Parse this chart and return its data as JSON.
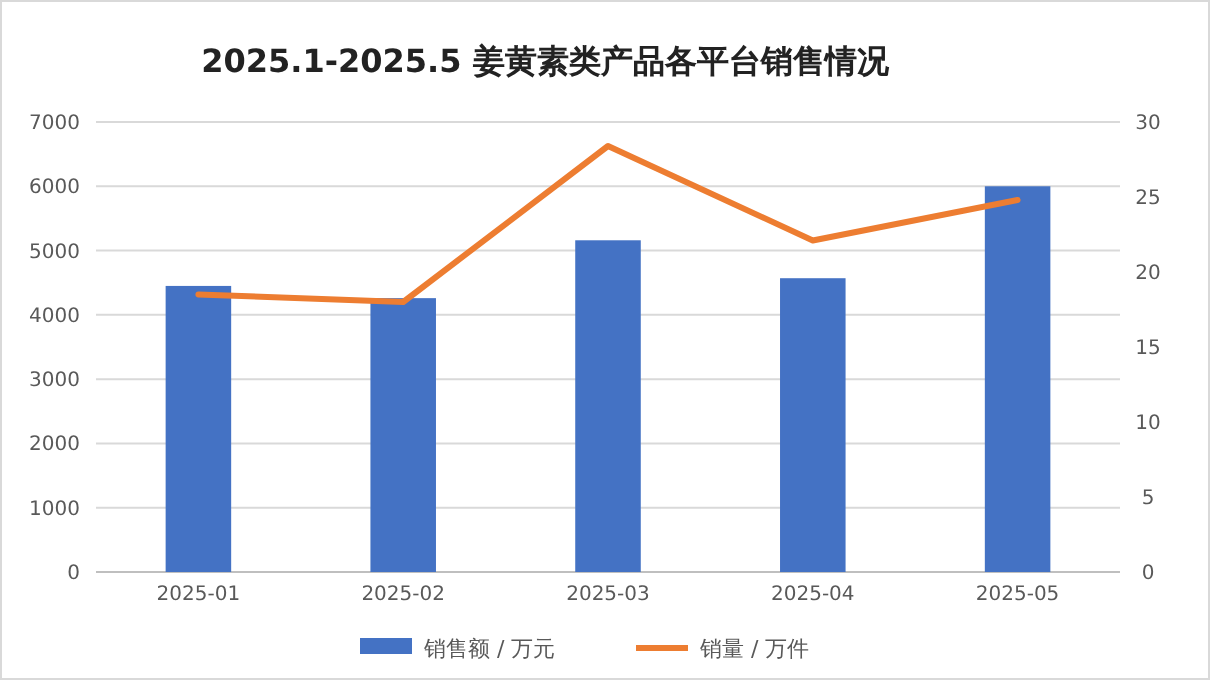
{
  "chart_data": {
    "type": "bar",
    "title": "2025.1-2025.5 姜黄素类产品各平台销售情况",
    "categories": [
      "2025-01",
      "2025-02",
      "2025-03",
      "2025-04",
      "2025-05"
    ],
    "series": [
      {
        "name": "销售额 / 万元",
        "color": "#4472c4",
        "values": [
          4450,
          4260,
          5160,
          4570,
          6000
        ]
      },
      {
        "name": "销量 / 万件",
        "type": "line",
        "axis": "y2",
        "color": "#ed7d31",
        "values": [
          18.5,
          18.0,
          28.4,
          22.1,
          24.8
        ]
      }
    ],
    "ylim": [
      0,
      7000
    ],
    "yticks": [
      0,
      1000,
      2000,
      3000,
      4000,
      5000,
      6000,
      7000
    ],
    "y2lim": [
      0,
      30
    ],
    "y2ticks": [
      0,
      5,
      10,
      15,
      20,
      25,
      30
    ],
    "grid": "y",
    "legend": "bottom",
    "marker": "none",
    "line_style": "solid"
  }
}
